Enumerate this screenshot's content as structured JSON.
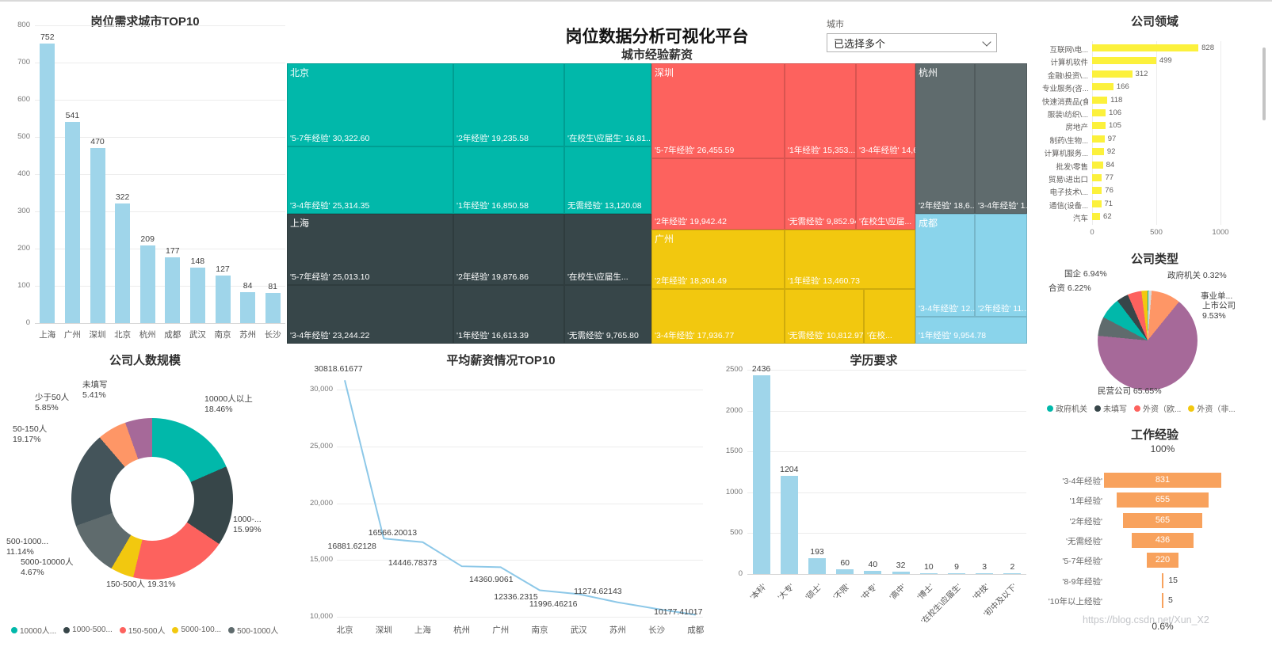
{
  "header": {
    "title": "岗位数据分析可视化平台",
    "filter_label": "城市",
    "filter_value": "已选择多个"
  },
  "watermark": "https://blog.csdn.net/Xun_X2",
  "chart_data": [
    {
      "id": "city_top10",
      "type": "bar",
      "title": "岗位需求城市TOP10",
      "categories": [
        "上海",
        "广州",
        "深圳",
        "北京",
        "杭州",
        "成都",
        "武汉",
        "南京",
        "苏州",
        "长沙"
      ],
      "values": [
        752,
        541,
        470,
        322,
        209,
        177,
        148,
        127,
        84,
        81
      ],
      "ylim": [
        0,
        800
      ],
      "ytick_step": 100,
      "bar_color": "#9fd5ea"
    },
    {
      "id": "city_exp_salary",
      "type": "treemap",
      "title": "城市经验薪资",
      "groups": [
        {
          "name": "北京",
          "color": "#01b8aa",
          "cells": [
            {
              "label": "'5-7年经验' 30,322.60"
            },
            {
              "label": "'2年经验' 19,235.58"
            },
            {
              "label": "'在校生\\应届生' 16,81..."
            },
            {
              "label": "'3-4年经验' 25,314.35"
            },
            {
              "label": "'1年经验' 16,850.58"
            },
            {
              "label": "无需经验' 13,120.08"
            }
          ]
        },
        {
          "name": "上海",
          "color": "#374649",
          "cells": [
            {
              "label": "'5-7年经验' 25,013.10"
            },
            {
              "label": "'2年经验' 19,876.86"
            },
            {
              "label": "'在校生\\应届生..."
            },
            {
              "label": "'3-4年经验' 23,244.22"
            },
            {
              "label": "'1年经验' 16,613.39"
            },
            {
              "label": "'无需经验' 9,765.80"
            }
          ]
        },
        {
          "name": "深圳",
          "color": "#fd625e",
          "cells": [
            {
              "label": "'5-7年经验' 26,455.59"
            },
            {
              "label": "'1年经验' 15,353..."
            },
            {
              "label": "'3-4年经验' 14,6..."
            },
            {
              "label": "'2年经验' 19,942.42"
            },
            {
              "label": "'无需经验' 9,852.94"
            },
            {
              "label": "'在校生\\应届..."
            }
          ]
        },
        {
          "name": "广州",
          "color": "#f2c80f",
          "cells": [
            {
              "label": "'2年经验' 18,304.49"
            },
            {
              "label": "'1年经验' 13,460.73"
            },
            {
              "label": "'3-4年经验' 17,936.77"
            },
            {
              "label": "'无需经验' 10,812.97"
            },
            {
              "label": "'在校..."
            }
          ]
        },
        {
          "name": "杭州",
          "color": "#5f6b6d",
          "cells": [
            {
              "label": "'2年经验' 18,6..."
            },
            {
              "label": "'3-4年经验' 1..."
            }
          ]
        },
        {
          "name": "成都",
          "color": "#8ad4eb",
          "cells": [
            {
              "label": "'3-4年经验' 12..."
            },
            {
              "label": "'2年经验' 11..."
            },
            {
              "label": "'1年经验' 9,954.78"
            }
          ]
        }
      ]
    },
    {
      "id": "company_field",
      "type": "bar",
      "title": "公司领域",
      "orientation": "horizontal",
      "categories": [
        "互联网\\电...",
        "计算机软件",
        "金融\\投资\\...",
        "专业服务(咨...",
        "快速消费品(食...",
        "服装\\纺织\\...",
        "房地产",
        "制药\\生物...",
        "计算机服务...",
        "批发\\零售",
        "贸易\\进出口",
        "电子技术\\...",
        "通信(设备...",
        "汽车"
      ],
      "values": [
        828,
        499,
        312,
        166,
        118,
        106,
        105,
        97,
        92,
        84,
        77,
        76,
        71,
        62
      ],
      "xlim": [
        0,
        1000
      ],
      "xticks": [
        0,
        500,
        1000
      ],
      "bar_color": "#fcf13c"
    },
    {
      "id": "company_type",
      "type": "pie",
      "title": "公司类型",
      "slices": [
        {
          "name": "政府机关",
          "pct": 0.32,
          "color": "#01b8aa",
          "label_lines": [
            "政府机关 0.32%"
          ]
        },
        {
          "name": "事业单位",
          "pct": 1.0,
          "est": true,
          "color": "#d9d9d9",
          "label_lines": [
            "事业单..."
          ]
        },
        {
          "name": "上市公司",
          "pct": 9.53,
          "color": "#fe9666",
          "label_lines": [
            "上市公司",
            "9.53%"
          ]
        },
        {
          "name": "民营公司",
          "pct": 65.65,
          "color": "#a66999",
          "label_lines": [
            "民营公司 65.65%"
          ]
        },
        {
          "name": "合资",
          "pct": 6.22,
          "color": "#5f6b6d",
          "label_lines": [
            "合资 6.22%"
          ]
        },
        {
          "name": "国企",
          "pct": 6.94,
          "color": "#01b8aa",
          "label_lines": [
            "国企 6.94%"
          ]
        },
        {
          "name": "未填写",
          "pct": 3.84,
          "est": true,
          "color": "#374649",
          "label_lines": null
        },
        {
          "name": "外资（欧美）",
          "pct": 4.5,
          "est": true,
          "color": "#fd625e",
          "label_lines": null
        },
        {
          "name": "外资（非欧美）",
          "pct": 2.0,
          "est": true,
          "color": "#f2c80f",
          "label_lines": null
        }
      ],
      "legend": [
        {
          "label": "政府机关",
          "color": "#01b8aa"
        },
        {
          "label": "未填写",
          "color": "#374649"
        },
        {
          "label": "外资（欧...",
          "color": "#fd625e"
        },
        {
          "label": "外资（非...",
          "color": "#f2c80f"
        }
      ]
    },
    {
      "id": "company_size",
      "type": "pie",
      "title": "公司人数规模",
      "donut": true,
      "slices": [
        {
          "name": "10000人以上",
          "pct": 18.46,
          "color": "#01b8aa",
          "label_lines": [
            "10000人以上",
            "18.46%"
          ]
        },
        {
          "name": "1000-...",
          "pct": 15.99,
          "color": "#374649",
          "label_lines": [
            "1000-...",
            "15.99%"
          ]
        },
        {
          "name": "150-500人",
          "pct": 19.31,
          "color": "#fd625e",
          "label_lines": [
            "150-500人 19.31%"
          ]
        },
        {
          "name": "5000-10000人",
          "pct": 4.67,
          "color": "#f2c80f",
          "label_lines": [
            "5000-10000人",
            "4.67%"
          ]
        },
        {
          "name": "500-1000...",
          "pct": 11.14,
          "color": "#5f6b6d",
          "label_lines": [
            "500-1000...",
            "11.14%"
          ]
        },
        {
          "name": "50-150人",
          "pct": 19.17,
          "color": "#44545a",
          "label_lines": [
            "50-150人",
            "19.17%"
          ]
        },
        {
          "name": "少于50人",
          "pct": 5.85,
          "color": "#fe9666",
          "label_lines": [
            "少于50人",
            "5.85%"
          ]
        },
        {
          "name": "未填写",
          "pct": 5.41,
          "color": "#a66999",
          "label_lines": [
            "未填写",
            "5.41%"
          ]
        }
      ],
      "legend": [
        {
          "label": "10000人...",
          "color": "#01b8aa"
        },
        {
          "label": "1000-500...",
          "color": "#374649"
        },
        {
          "label": "150-500人",
          "color": "#fd625e"
        },
        {
          "label": "5000-100...",
          "color": "#f2c80f"
        },
        {
          "label": "500-1000人",
          "color": "#5f6b6d"
        }
      ]
    },
    {
      "id": "avg_salary_top10",
      "type": "line",
      "title": "平均薪资情况TOP10",
      "categories": [
        "北京",
        "深圳",
        "上海",
        "杭州",
        "广州",
        "南京",
        "武汉",
        "苏州",
        "长沙",
        "成都"
      ],
      "values": [
        30818.61677,
        16881.62128,
        16566.20013,
        14446.78373,
        14360.9061,
        12336.2315,
        11996.46216,
        11274.62143,
        10700,
        10177.41017
      ],
      "labels": [
        "30818.61677",
        "16881.62128",
        "16566.20013",
        "14446.78373",
        "14360.9061",
        "12336.2315",
        "11996.46216",
        "11274.62143",
        null,
        "10177.41017"
      ],
      "ylim": [
        10000,
        32000
      ],
      "yticks": [
        10000,
        15000,
        20000,
        25000,
        30000
      ],
      "ytick_labels": [
        "10,000",
        "15,000",
        "20,000",
        "25,000",
        "30,000"
      ],
      "line_color": "#8dc8e8"
    },
    {
      "id": "education",
      "type": "bar",
      "title": "学历要求",
      "categories": [
        "'本科'",
        "'大专'",
        "'硕士'",
        "'不限'",
        "'中专'",
        "'高中'",
        "'博士'",
        "'在校生\\应届生'",
        "'中技'",
        "'初中及以下'"
      ],
      "values": [
        2436,
        1204,
        193,
        60,
        40,
        32,
        10,
        9,
        3,
        2
      ],
      "ylim": [
        0,
        2500
      ],
      "ytick_step": 500,
      "bar_color": "#9fd5ea",
      "rotate_labels": true
    },
    {
      "id": "experience_funnel",
      "type": "funnel",
      "title": "工作经验",
      "top_label": "100%",
      "bottom_label": "0.6%",
      "stages": [
        {
          "label": "'3-4年经验'",
          "value": 831
        },
        {
          "label": "'1年经验'",
          "value": 655
        },
        {
          "label": "'2年经验'",
          "value": 565
        },
        {
          "label": "'无需经验'",
          "value": 436
        },
        {
          "label": "'5-7年经验'",
          "value": 220
        },
        {
          "label": "'8-9年经验'",
          "value": 15
        },
        {
          "label": "'10年以上经验'",
          "value": 5
        }
      ],
      "bar_color": "#f8a25d"
    }
  ]
}
